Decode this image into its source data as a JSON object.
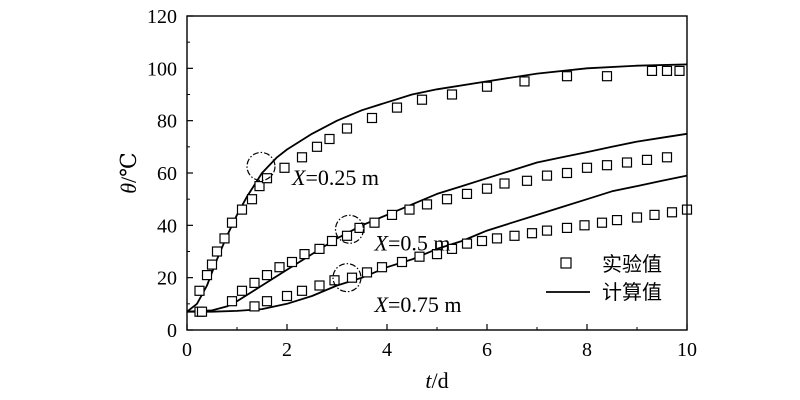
{
  "chart_data": {
    "type": "scatter",
    "title": "",
    "xlabel": {
      "var": "t",
      "unit": "/d"
    },
    "ylabel": {
      "var": "θ",
      "unit": "/℃"
    },
    "xlim": [
      0,
      10
    ],
    "ylim": [
      0,
      120
    ],
    "xticks": [
      0,
      2,
      4,
      6,
      8,
      10
    ],
    "yticks": [
      0,
      20,
      40,
      60,
      80,
      100,
      120
    ],
    "grid": false,
    "legend": {
      "position": "bottom-right",
      "entries": [
        {
          "label": "实验值",
          "marker": "square-open"
        },
        {
          "label": "计算值",
          "marker": "line"
        }
      ]
    },
    "series": [
      {
        "kind": "experimental",
        "group": "X=0.25 m",
        "x": [
          0.25,
          0.4,
          0.5,
          0.6,
          0.75,
          0.9,
          1.1,
          1.3,
          1.45,
          1.6,
          1.95,
          2.3,
          2.6,
          2.85,
          3.2,
          3.7,
          4.2,
          4.7,
          5.3,
          6.0,
          6.75,
          7.6,
          8.4,
          9.3,
          9.6,
          9.85
        ],
        "y": [
          15,
          21,
          25,
          30,
          35,
          41,
          46,
          50,
          55,
          58,
          62,
          66,
          70,
          73,
          77,
          81,
          85,
          88,
          90,
          93,
          95,
          97,
          97,
          99,
          99,
          99
        ]
      },
      {
        "kind": "experimental",
        "group": "X=0.5 m",
        "x": [
          0.25,
          0.9,
          1.1,
          1.35,
          1.6,
          1.85,
          2.1,
          2.35,
          2.65,
          2.9,
          3.2,
          3.45,
          3.75,
          4.1,
          4.45,
          4.8,
          5.2,
          5.6,
          6.0,
          6.35,
          6.8,
          7.2,
          7.6,
          8.0,
          8.4,
          8.8,
          9.2,
          9.6
        ],
        "y": [
          7,
          11,
          15,
          18,
          21,
          24,
          26,
          29,
          31,
          34,
          36,
          39,
          41,
          44,
          46,
          48,
          50,
          52,
          54,
          56,
          57,
          59,
          60,
          62,
          63,
          64,
          65,
          66
        ]
      },
      {
        "kind": "experimental",
        "group": "X=0.75 m",
        "x": [
          0.3,
          1.35,
          1.6,
          2.0,
          2.3,
          2.65,
          2.95,
          3.3,
          3.6,
          3.9,
          4.3,
          4.65,
          5.0,
          5.3,
          5.6,
          5.9,
          6.2,
          6.55,
          6.9,
          7.2,
          7.6,
          7.95,
          8.3,
          8.6,
          9.0,
          9.35,
          9.7,
          10.0
        ],
        "y": [
          7,
          9,
          11,
          13,
          15,
          17,
          19,
          20,
          22,
          24,
          26,
          28,
          29,
          31,
          33,
          34,
          35,
          36,
          37,
          38,
          39,
          40,
          41,
          42,
          43,
          44,
          45,
          46
        ]
      },
      {
        "kind": "calculated",
        "group": "X=0.25 m",
        "x": [
          0,
          0.2,
          0.4,
          0.6,
          0.8,
          1.0,
          1.2,
          1.5,
          1.8,
          2.0,
          2.5,
          3.0,
          3.5,
          4.0,
          4.5,
          5.0,
          6.0,
          7.0,
          8.0,
          9.0,
          10.0
        ],
        "y": [
          7,
          10,
          17,
          27,
          36,
          44,
          51,
          60,
          66,
          69,
          75,
          80,
          84,
          87,
          90,
          92,
          95,
          98,
          100,
          101,
          101.5
        ]
      },
      {
        "kind": "calculated",
        "group": "X=0.5 m",
        "x": [
          0,
          0.5,
          0.8,
          1.0,
          1.5,
          2.0,
          2.5,
          3.0,
          3.5,
          4.0,
          4.5,
          5.0,
          5.5,
          6.0,
          6.5,
          7.0,
          7.5,
          8.0,
          8.5,
          9.0,
          9.5,
          10.0
        ],
        "y": [
          7,
          7.5,
          9,
          11,
          17,
          23,
          29,
          35,
          40,
          44,
          48,
          52,
          55,
          58,
          61,
          64,
          66,
          68,
          70,
          72,
          73.5,
          75
        ]
      },
      {
        "kind": "calculated",
        "group": "X=0.75 m",
        "x": [
          0,
          0.5,
          1.0,
          1.5,
          2.0,
          2.5,
          3.0,
          3.5,
          4.0,
          4.5,
          5.0,
          5.5,
          6.0,
          6.5,
          7.0,
          7.5,
          8.0,
          8.5,
          9.0,
          9.5,
          10.0
        ],
        "y": [
          7,
          7,
          7.3,
          8,
          10,
          13,
          17,
          20,
          24,
          27,
          31,
          34,
          38,
          41,
          44,
          47,
          50,
          53,
          55,
          57,
          59
        ]
      }
    ],
    "annotations": [
      {
        "label_var": "X",
        "label_rest": "=0.25 m",
        "x": 2.1,
        "y": 58,
        "circle": {
          "x": 1.48,
          "y": 62.5
        }
      },
      {
        "label_var": "X",
        "label_rest": "=0.5 m",
        "x": 3.75,
        "y": 33,
        "circle": {
          "x": 3.25,
          "y": 38.5
        }
      },
      {
        "label_var": "X",
        "label_rest": "=0.75 m",
        "x": 3.75,
        "y": 9.5,
        "circle": {
          "x": 3.2,
          "y": 20
        }
      }
    ]
  }
}
